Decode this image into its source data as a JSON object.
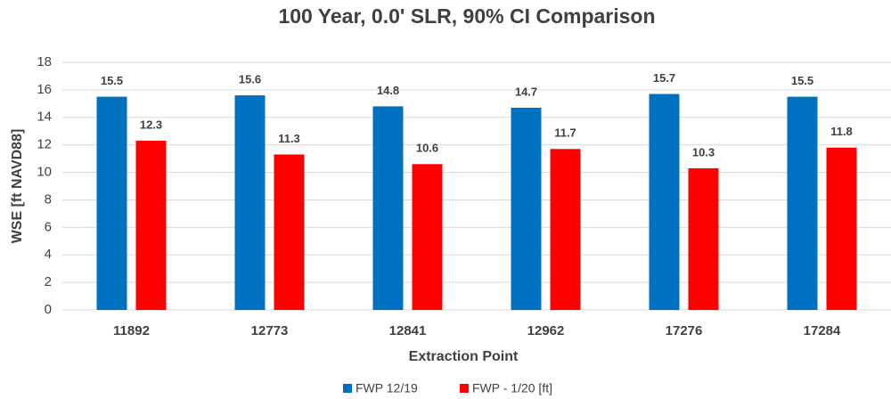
{
  "chart_data": {
    "type": "bar",
    "title": "100 Year, 0.0' SLR, 90% CI Comparison",
    "x_label": "Extraction Point",
    "y_label": "WSE [ft NAVD88]",
    "categories": [
      "11892",
      "12773",
      "12841",
      "12962",
      "17276",
      "17284"
    ],
    "series": [
      {
        "name": "FWP 12/19",
        "color": "#0070c0",
        "values": [
          15.5,
          15.6,
          14.8,
          14.7,
          15.7,
          15.5
        ]
      },
      {
        "name": "FWP - 1/20 [ft]",
        "color": "#ff0000",
        "values": [
          12.3,
          11.3,
          10.6,
          11.7,
          10.3,
          11.8
        ]
      }
    ],
    "ylim": [
      0,
      18
    ],
    "yticks": [
      0,
      2,
      4,
      6,
      8,
      10,
      12,
      14,
      16,
      18
    ],
    "grid": true,
    "legend": "bottom"
  }
}
